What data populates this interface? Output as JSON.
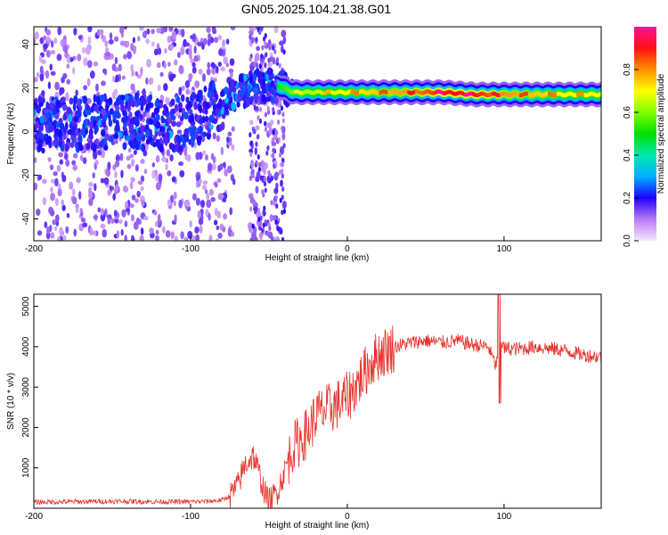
{
  "title": "GN05.2025.104.21.38.G01",
  "chart_data": [
    {
      "type": "heatmap",
      "xlabel": "Height of straight line (km)",
      "ylabel": "Frequency (Hz)",
      "xlim": [
        -200,
        162
      ],
      "ylim": [
        -50,
        48
      ],
      "x_ticks": [
        -200,
        -100,
        0,
        100
      ],
      "y_ticks": [
        -40,
        -20,
        0,
        20,
        40
      ],
      "colorbar": {
        "label": "Normalized spectral amplitude",
        "range": [
          0,
          1
        ],
        "ticks": [
          0.0,
          0.2,
          0.4,
          0.6,
          0.8
        ]
      },
      "ridge": {
        "x": [
          -200,
          -170,
          -140,
          -110,
          -90,
          -75,
          -65,
          -55,
          -45,
          -35,
          -20,
          0,
          20,
          40,
          60,
          80,
          100,
          120,
          140,
          162
        ],
        "frequency": [
          3,
          4,
          5,
          3,
          8,
          15,
          19,
          21,
          21,
          18,
          18,
          18,
          18,
          18,
          18,
          17,
          17,
          17,
          17,
          17
        ],
        "amplitude": [
          0.2,
          0.2,
          0.2,
          0.25,
          0.3,
          0.4,
          0.45,
          0.45,
          0.5,
          0.6,
          0.65,
          0.7,
          0.75,
          0.8,
          0.9,
          0.9,
          0.8,
          0.75,
          0.7,
          0.7
        ]
      }
    },
    {
      "type": "line",
      "xlabel": "Height of straight line (km)",
      "ylabel": "SNR (10 * v/v)",
      "xlim": [
        -200,
        162
      ],
      "ylim": [
        0,
        5300
      ],
      "x_ticks": [
        -200,
        -100,
        0,
        100
      ],
      "y_ticks": [
        1000,
        2000,
        3000,
        4000,
        5000
      ],
      "color": "#e8302a",
      "series": [
        {
          "x": [
            -200,
            -180,
            -160,
            -140,
            -120,
            -100,
            -90,
            -80,
            -75,
            -70,
            -65,
            -60,
            -55,
            -52,
            -50,
            -45,
            -40,
            -35,
            -30,
            -25,
            -20,
            -15,
            -10,
            -5,
            0,
            5,
            10,
            15,
            20,
            25,
            30,
            35,
            40,
            50,
            60,
            70,
            80,
            90,
            95,
            97,
            100,
            110,
            120,
            130,
            140,
            150,
            162
          ],
          "values": [
            150,
            160,
            170,
            170,
            160,
            160,
            170,
            200,
            300,
            550,
            1100,
            1300,
            700,
            300,
            150,
            400,
            900,
            1500,
            1700,
            1900,
            2300,
            2400,
            2500,
            2600,
            2750,
            3000,
            3300,
            3600,
            3800,
            3900,
            4000,
            4050,
            4100,
            4150,
            4100,
            4150,
            4050,
            4000,
            3500,
            4300,
            3950,
            3950,
            4000,
            3950,
            3900,
            3800,
            3750
          ]
        }
      ]
    }
  ]
}
